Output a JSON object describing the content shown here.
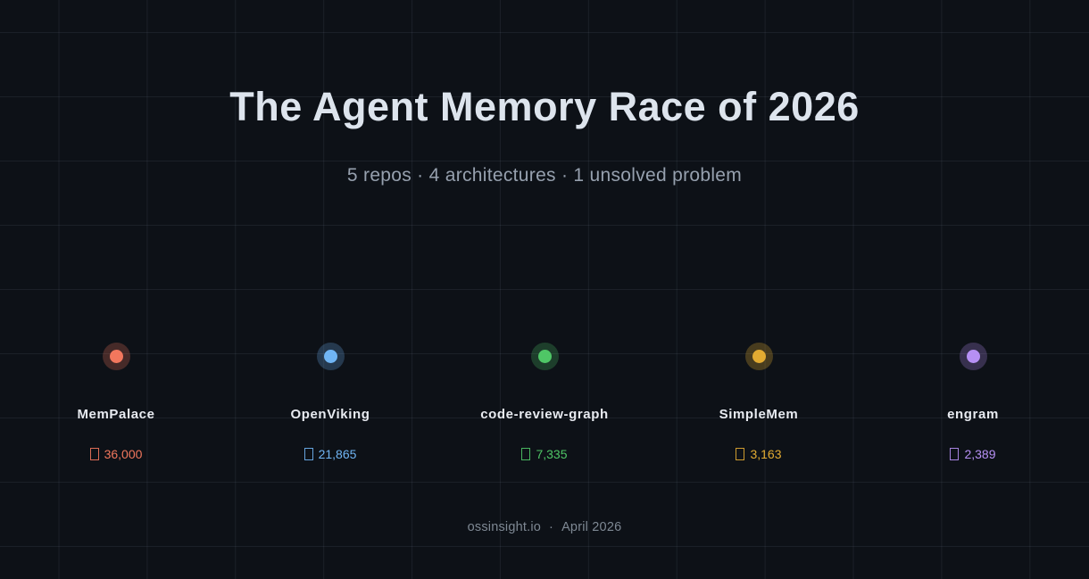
{
  "page": {
    "title": "The Agent Memory Race of 2026",
    "subtitle": "5 repos · 4 architectures · 1 unsolved problem",
    "footer": {
      "source": "ossinsight.io",
      "separator": "·",
      "date": "April 2026"
    }
  },
  "theme": {
    "background": "#0d1117",
    "grid_line": "rgba(148,163,184,0.10)",
    "title_color": "#dde4ed",
    "subtitle_color": "#96a0ae",
    "repo_name_color": "#e8ebf1",
    "footer_color": "#7e8893",
    "star_icon": "missing-glyph-box"
  },
  "chart_data": {
    "type": "scatter",
    "title": "The Agent Memory Race of 2026",
    "subtitle": "5 repos · 4 architectures · 1 unsolved problem",
    "legend_position": "none",
    "grid": true,
    "categories": [
      "MemPalace",
      "OpenViking",
      "code-review-graph",
      "SimpleMem",
      "engram"
    ],
    "values": [
      36000,
      21865,
      7335,
      3163,
      2389
    ],
    "repos": [
      {
        "name": "MemPalace",
        "stars": 36000,
        "stars_label": "36,000",
        "color": "#f2775d",
        "ring": "rgba(242,119,93,0.25)"
      },
      {
        "name": "OpenViking",
        "stars": 21865,
        "stars_label": "21,865",
        "color": "#70b5f4",
        "ring": "rgba(112,181,244,0.25)"
      },
      {
        "name": "code-review-graph",
        "stars": 7335,
        "stars_label": "7,335",
        "color": "#4fc666",
        "ring": "rgba(79,198,102,0.25)"
      },
      {
        "name": "SimpleMem",
        "stars": 3163,
        "stars_label": "3,163",
        "color": "#e2ab32",
        "ring": "rgba(226,171,50,0.28)"
      },
      {
        "name": "engram",
        "stars": 2389,
        "stars_label": "2,389",
        "color": "#b690f4",
        "ring": "rgba(182,144,244,0.25)"
      }
    ]
  }
}
